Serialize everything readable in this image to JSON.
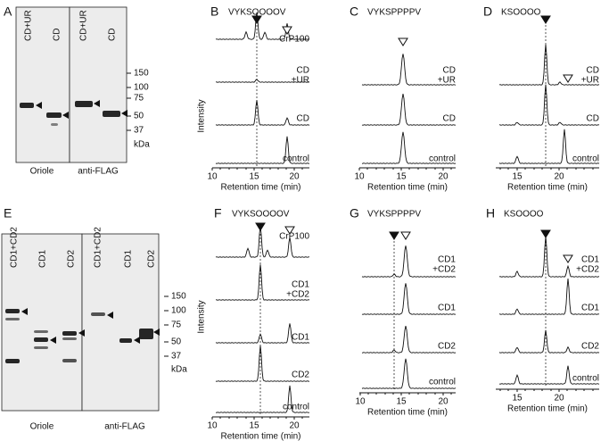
{
  "panels": {
    "A": {
      "label": "A",
      "lanes": [
        "CD+UR",
        "CD",
        "CD+UR",
        "CD"
      ],
      "markers": [
        "150",
        "100",
        "75",
        "50",
        "37",
        "kDa"
      ],
      "captions": [
        "Oriole",
        "anti-FLAG"
      ]
    },
    "B": {
      "label": "B",
      "title": "VYKSOOOOV",
      "y_label": "Intensity",
      "x_label": "Retention time (min)",
      "xticks": [
        "10",
        "15",
        "20"
      ],
      "traces": [
        [
          "CrP100"
        ],
        [
          "CD",
          "+UR"
        ],
        [
          "CD"
        ],
        [
          "control"
        ]
      ]
    },
    "C": {
      "label": "C",
      "title": "VYKSPPPPV",
      "x_label": "Retention time (min)",
      "xticks": [
        "10",
        "15",
        "20"
      ],
      "traces": [
        [
          "CD",
          "+UR"
        ],
        [
          "CD"
        ],
        [
          "control"
        ]
      ]
    },
    "D": {
      "label": "D",
      "title": "KSOOOO",
      "x_label": "Retention time (min)",
      "xticks": [
        "15",
        "20"
      ],
      "traces": [
        [
          "CD",
          "+UR"
        ],
        [
          "CD"
        ],
        [
          "control"
        ]
      ]
    },
    "E": {
      "label": "E",
      "lanes": [
        "CD1+CD2",
        "CD1",
        "CD2",
        "CD1+CD2",
        "CD1",
        "CD2"
      ],
      "markers": [
        "150",
        "100",
        "75",
        "50",
        "37",
        "kDa"
      ],
      "captions": [
        "Oriole",
        "anti-FLAG"
      ]
    },
    "F": {
      "label": "F",
      "title": "VYKSOOOOV",
      "y_label": "Intensity",
      "x_label": "Retention time (min)",
      "xticks": [
        "10",
        "15",
        "20"
      ],
      "traces": [
        [
          "CrP100"
        ],
        [
          "CD1",
          "+CD2"
        ],
        [
          "CD1"
        ],
        [
          "CD2"
        ],
        [
          "control"
        ]
      ]
    },
    "G": {
      "label": "G",
      "title": "VYKSPPPPV",
      "x_label": "Retention time (min)",
      "xticks": [
        "10",
        "15",
        "20"
      ],
      "traces": [
        [
          "CD1",
          "+CD2"
        ],
        [
          "CD1"
        ],
        [
          "CD2"
        ],
        [
          "control"
        ]
      ]
    },
    "H": {
      "label": "H",
      "title": "KSOOOO",
      "x_label": "Retention time (min)",
      "xticks": [
        "15",
        "20"
      ],
      "traces": [
        [
          "CD1",
          "+CD2"
        ],
        [
          "CD1"
        ],
        [
          "CD2"
        ],
        [
          "control"
        ]
      ]
    }
  }
}
